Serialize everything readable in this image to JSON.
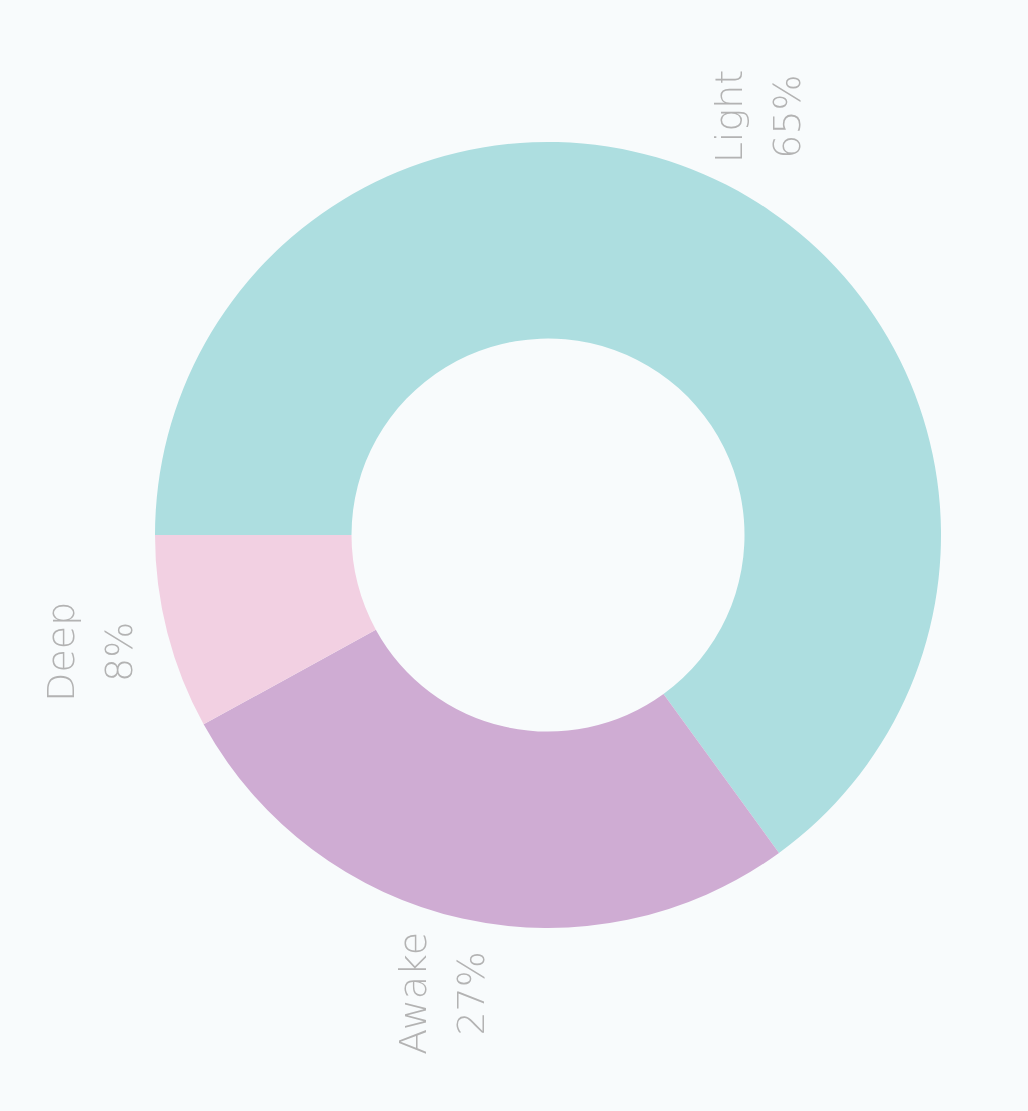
{
  "chart_data": {
    "type": "donut",
    "categories": [
      "Light",
      "Awake",
      "Deep"
    ],
    "values": [
      65,
      27,
      8
    ],
    "colors": [
      "#addee0",
      "#cfacd3",
      "#f2d0e2"
    ],
    "value_labels": [
      "65%",
      "27%",
      "8%"
    ]
  }
}
